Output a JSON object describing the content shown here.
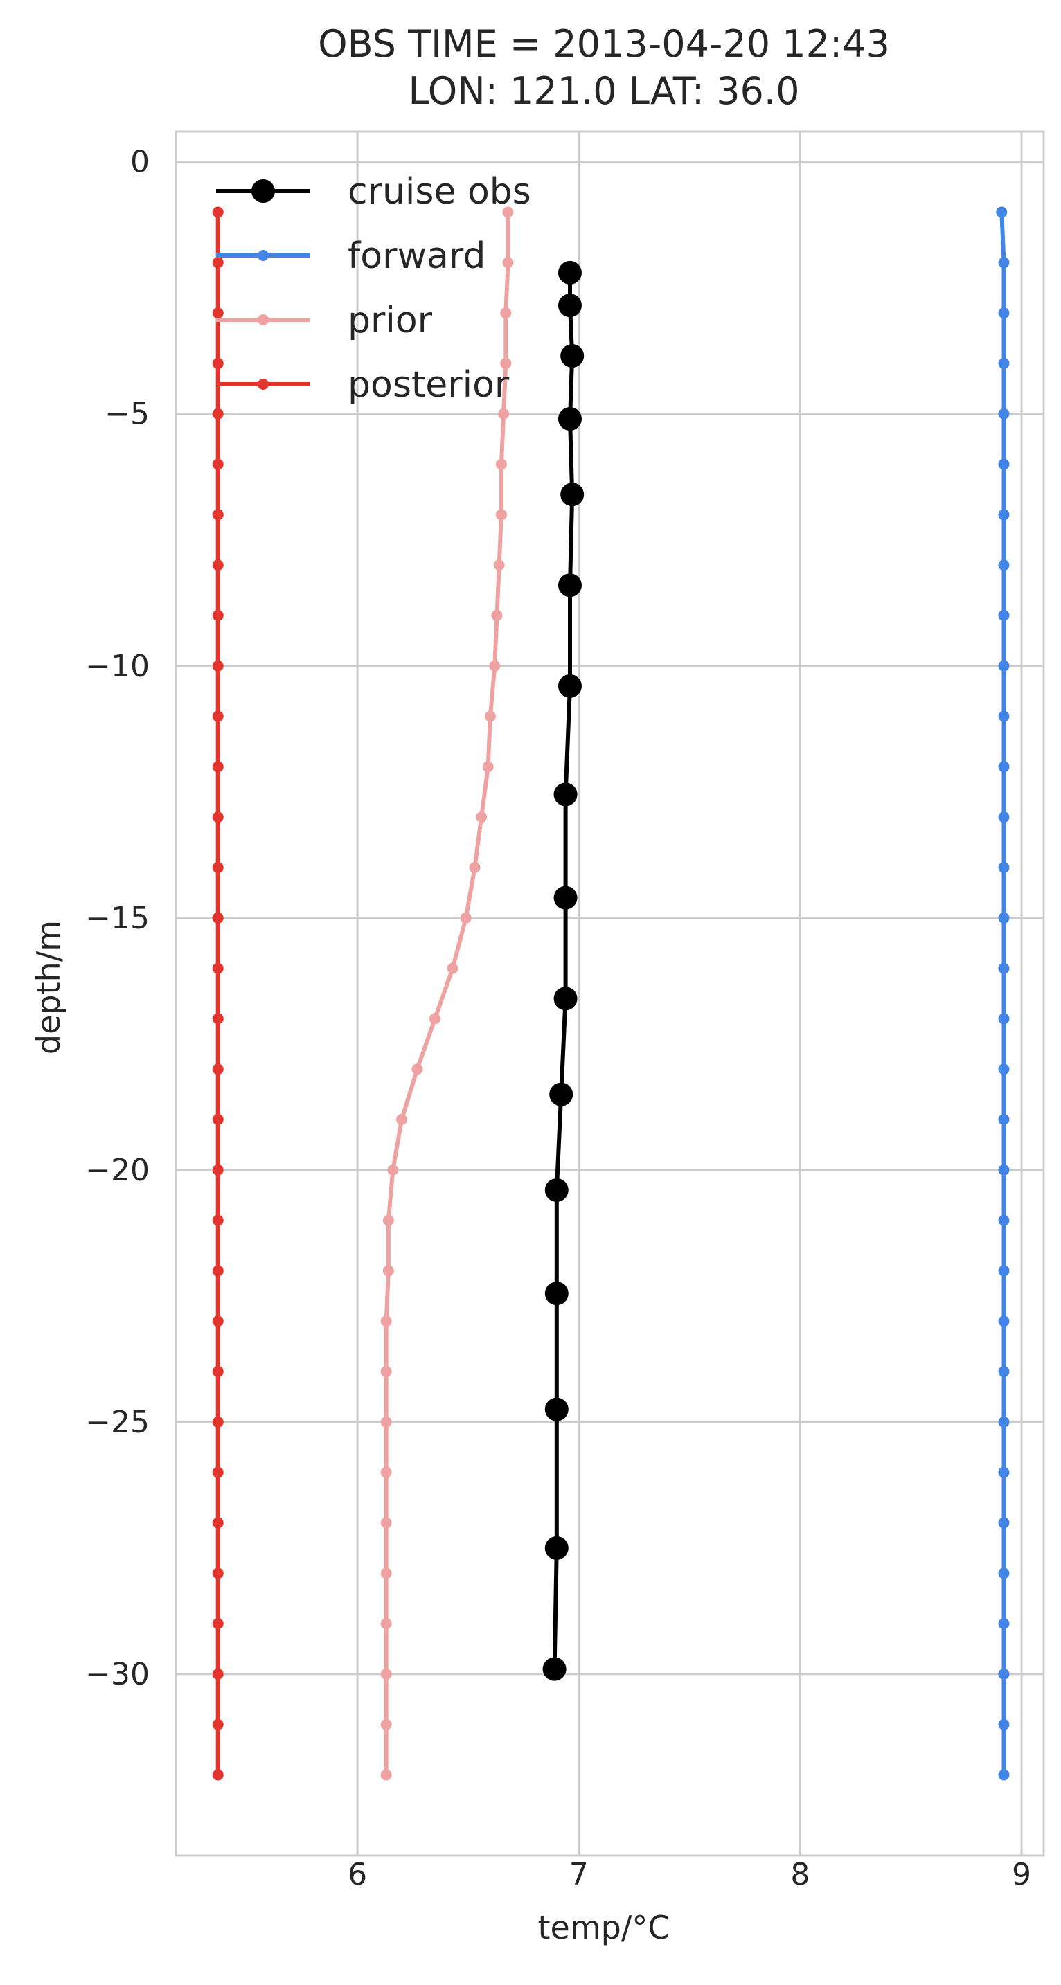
{
  "chart_data": {
    "type": "line",
    "title_lines": [
      "OBS TIME = 2013-04-20 12:43",
      "LON: 121.0 LAT: 36.0"
    ],
    "xlabel": "temp/°C",
    "ylabel": "depth/m",
    "xlim": [
      5.18,
      9.1
    ],
    "ylim": [
      -33.6,
      0.6
    ],
    "xticks": [
      6,
      7,
      8,
      9
    ],
    "yticks": [
      0,
      -5,
      -10,
      -15,
      -20,
      -25,
      -30
    ],
    "grid": true,
    "legend_position": "upper-left",
    "series": [
      {
        "name": "cruise obs",
        "color": "#000000",
        "marker": "large-circle",
        "x": [
          6.96,
          6.96,
          6.97,
          6.96,
          6.97,
          6.96,
          6.96,
          6.94,
          6.94,
          6.94,
          6.92,
          6.9,
          6.9,
          6.9,
          6.9,
          6.89
        ],
        "y": [
          -2.2,
          -2.85,
          -3.85,
          -5.1,
          -6.6,
          -8.4,
          -10.4,
          -12.55,
          -14.6,
          -16.6,
          -18.5,
          -20.4,
          -22.45,
          -24.75,
          -27.5,
          -29.9
        ]
      },
      {
        "name": "forward",
        "color": "#4285e6",
        "marker": "small-dot",
        "x": [
          8.91,
          8.92,
          8.92,
          8.92,
          8.92,
          8.92,
          8.92,
          8.92,
          8.92,
          8.92,
          8.92,
          8.92,
          8.92,
          8.92,
          8.92,
          8.92,
          8.92,
          8.92,
          8.92,
          8.92,
          8.92,
          8.92,
          8.92,
          8.92,
          8.92,
          8.92,
          8.92,
          8.92,
          8.92,
          8.92,
          8.92,
          8.92
        ],
        "y": [
          -1,
          -2,
          -3,
          -4,
          -5,
          -6,
          -7,
          -8,
          -9,
          -10,
          -11,
          -12,
          -13,
          -14,
          -15,
          -16,
          -17,
          -18,
          -19,
          -20,
          -21,
          -22,
          -23,
          -24,
          -25,
          -26,
          -27,
          -28,
          -29,
          -30,
          -31,
          -32
        ]
      },
      {
        "name": "prior",
        "color": "#eea2a2",
        "marker": "small-dot",
        "x": [
          6.68,
          6.68,
          6.67,
          6.67,
          6.66,
          6.65,
          6.65,
          6.64,
          6.63,
          6.62,
          6.6,
          6.59,
          6.56,
          6.53,
          6.49,
          6.43,
          6.35,
          6.27,
          6.2,
          6.16,
          6.14,
          6.14,
          6.13,
          6.13,
          6.13,
          6.13,
          6.13,
          6.13,
          6.13,
          6.13,
          6.13,
          6.13
        ],
        "y": [
          -1,
          -2,
          -3,
          -4,
          -5,
          -6,
          -7,
          -8,
          -9,
          -10,
          -11,
          -12,
          -13,
          -14,
          -15,
          -16,
          -17,
          -18,
          -19,
          -20,
          -21,
          -22,
          -23,
          -24,
          -25,
          -26,
          -27,
          -28,
          -29,
          -30,
          -31,
          -32
        ]
      },
      {
        "name": "posterior",
        "color": "#e3352e",
        "marker": "small-dot",
        "x": [
          5.37,
          5.37,
          5.37,
          5.37,
          5.37,
          5.37,
          5.37,
          5.37,
          5.37,
          5.37,
          5.37,
          5.37,
          5.37,
          5.37,
          5.37,
          5.37,
          5.37,
          5.37,
          5.37,
          5.37,
          5.37,
          5.37,
          5.37,
          5.37,
          5.37,
          5.37,
          5.37,
          5.37,
          5.37,
          5.37,
          5.37,
          5.37
        ],
        "y": [
          -1,
          -2,
          -3,
          -4,
          -5,
          -6,
          -7,
          -8,
          -9,
          -10,
          -11,
          -12,
          -13,
          -14,
          -15,
          -16,
          -17,
          -18,
          -19,
          -20,
          -21,
          -22,
          -23,
          -24,
          -25,
          -26,
          -27,
          -28,
          -29,
          -30,
          -31,
          -32
        ]
      }
    ]
  }
}
